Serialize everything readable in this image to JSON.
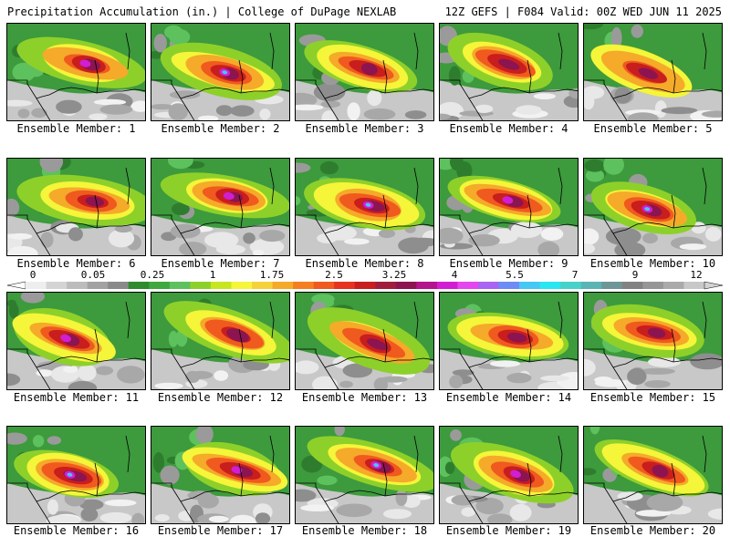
{
  "header": {
    "left": "Precipitation Accumulation (in.) | College of DuPage NEXLAB",
    "right": "12Z GEFS | F084 Valid: 00Z WED JUN 11 2025"
  },
  "colorbar": {
    "tick_labels": [
      "0",
      "0.05",
      "0.25",
      "1",
      "1.75",
      "2.5",
      "3.25",
      "4",
      "5.5",
      "7",
      "9",
      "12"
    ],
    "colors": [
      "#eeeeee",
      "#d4d4d4",
      "#bcbcbc",
      "#a2a2a2",
      "#8a8a8a",
      "#2e8b2e",
      "#3fa83f",
      "#5dc15d",
      "#8ed02a",
      "#c8e61e",
      "#f5f53a",
      "#f5d23a",
      "#f5aa2a",
      "#f57f20",
      "#f05a1e",
      "#e6321e",
      "#c81e1e",
      "#a01e3c",
      "#8c1450",
      "#b4148c",
      "#d21ed2",
      "#e646f0",
      "#aa64f5",
      "#6e8cf5",
      "#46c8f5",
      "#2ae6f0",
      "#46d2c8",
      "#5ab4b4",
      "#6e9696",
      "#828282",
      "#969696",
      "#aaaaaa",
      "#c8c8c8"
    ]
  },
  "panels": [
    {
      "label": "Ensemble Member: 1"
    },
    {
      "label": "Ensemble Member: 2"
    },
    {
      "label": "Ensemble Member: 3"
    },
    {
      "label": "Ensemble Member: 4"
    },
    {
      "label": "Ensemble Member: 5"
    },
    {
      "label": "Ensemble Member: 6"
    },
    {
      "label": "Ensemble Member: 7"
    },
    {
      "label": "Ensemble Member: 8"
    },
    {
      "label": "Ensemble Member: 9"
    },
    {
      "label": "Ensemble Member: 10"
    },
    {
      "label": "Ensemble Member: 11"
    },
    {
      "label": "Ensemble Member: 12"
    },
    {
      "label": "Ensemble Member: 13"
    },
    {
      "label": "Ensemble Member: 14"
    },
    {
      "label": "Ensemble Member: 15"
    },
    {
      "label": "Ensemble Member: 16"
    },
    {
      "label": "Ensemble Member: 17"
    },
    {
      "label": "Ensemble Member: 18"
    },
    {
      "label": "Ensemble Member: 19"
    },
    {
      "label": "Ensemble Member: 20"
    }
  ]
}
